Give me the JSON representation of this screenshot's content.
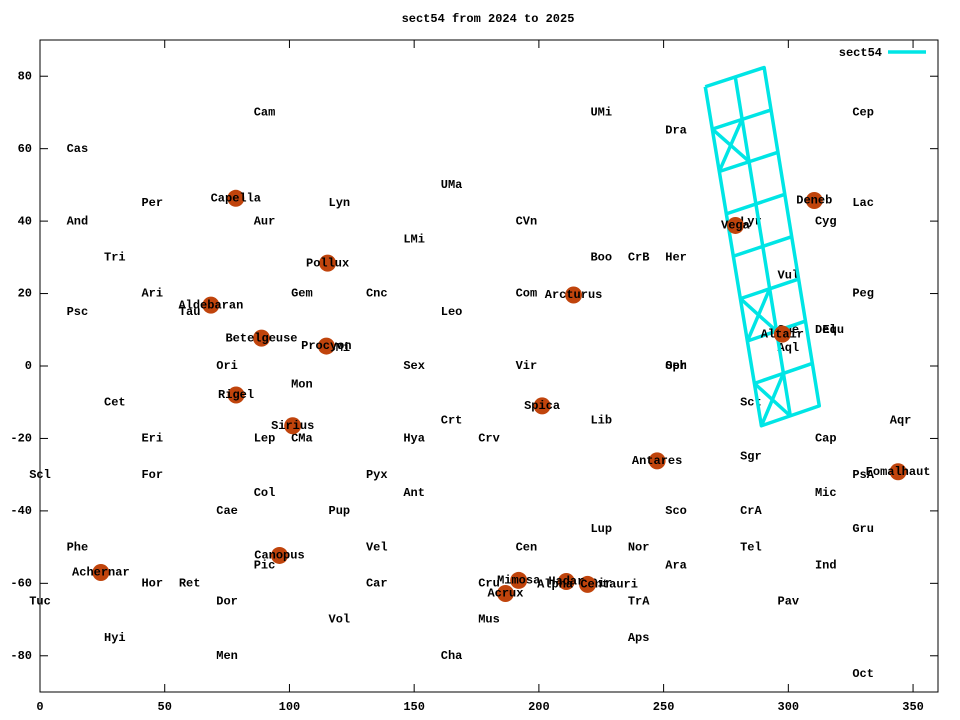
{
  "chart_data": {
    "type": "line",
    "title": "sect54 from 2024 to 2025",
    "xlim": [
      0,
      360
    ],
    "ylim": [
      -90,
      90
    ],
    "xticks": [
      0,
      50,
      100,
      150,
      200,
      250,
      300,
      350
    ],
    "yticks": [
      -80,
      -60,
      -40,
      -20,
      0,
      20,
      40,
      60,
      80
    ],
    "legend": "top-right",
    "series": [
      {
        "name": "sect54",
        "color": "#00e5e5",
        "x": [
          266.7,
          290.3,
          312.4,
          289.2,
          266.7,
          null,
          278.7,
          300.8,
          null,
          269.5,
          293.1,
          null,
          272.3,
          295.8,
          null,
          275.1,
          298.6,
          null,
          277.9,
          301.4,
          null,
          280.8,
          304.1,
          null,
          283.6,
          306.9,
          null,
          286.4,
          309.6,
          null,
          269.5,
          284.2,
          null,
          281.5,
          272.3,
          null,
          280.8,
          295.3,
          null,
          292.5,
          283.6,
          null,
          286.4,
          300.8,
          null,
          298.0,
          289.2
        ],
        "y": [
          77.1,
          82.4,
          -11.0,
          -16.5,
          77.1,
          null,
          79.9,
          -13.8,
          null,
          65.4,
          70.7,
          null,
          53.7,
          59.0,
          null,
          42.0,
          47.4,
          null,
          30.3,
          35.7,
          null,
          18.6,
          24.0,
          null,
          6.9,
          12.4,
          null,
          -4.8,
          0.7,
          null,
          65.4,
          56.5,
          null,
          68.2,
          53.7,
          null,
          18.6,
          9.6,
          null,
          21.3,
          6.9,
          null,
          -4.8,
          -13.8,
          null,
          -2.1,
          -16.5
        ]
      }
    ],
    "stars": {
      "color": "#c0440c",
      "labels": [
        "Capella",
        "Pollux",
        "Aldebaran",
        "Betelgeuse",
        "Procyon",
        "Rigel",
        "Sirius",
        "Canopus",
        "Achernar",
        "Arcturus",
        "Spica",
        "Antares",
        "Mimosa",
        "Acrux",
        "Hadar",
        "Alpha Centauri",
        "Vega",
        "Deneb",
        "Altair",
        "Fomalhaut"
      ],
      "x": [
        78.5,
        115.3,
        68.5,
        88.8,
        114.8,
        78.6,
        101.3,
        96.0,
        24.4,
        213.9,
        201.3,
        247.4,
        191.9,
        186.6,
        211.0,
        219.5,
        278.8,
        310.4,
        297.6,
        344.0
      ],
      "y": [
        46.3,
        28.4,
        16.8,
        7.7,
        5.5,
        -8.0,
        -16.5,
        -52.3,
        -57.0,
        19.6,
        -11.0,
        -26.2,
        -59.2,
        -62.8,
        -59.5,
        -60.3,
        38.8,
        45.7,
        8.8,
        -29.2
      ]
    },
    "annotations": [
      {
        "text": "Cam",
        "x": 90,
        "y": 70
      },
      {
        "text": "Cas",
        "x": 15,
        "y": 60
      },
      {
        "text": "UMi",
        "x": 225,
        "y": 70
      },
      {
        "text": "Dra",
        "x": 255,
        "y": 65
      },
      {
        "text": "Cep",
        "x": 330,
        "y": 70
      },
      {
        "text": "UMa",
        "x": 165,
        "y": 50
      },
      {
        "text": "Per",
        "x": 45,
        "y": 45
      },
      {
        "text": "Aur",
        "x": 90,
        "y": 40
      },
      {
        "text": "And",
        "x": 15,
        "y": 40
      },
      {
        "text": "Lyn",
        "x": 120,
        "y": 45
      },
      {
        "text": "LMi",
        "x": 150,
        "y": 35
      },
      {
        "text": "CVn",
        "x": 195,
        "y": 40
      },
      {
        "text": "Cyg",
        "x": 315,
        "y": 40
      },
      {
        "text": "Lac",
        "x": 330,
        "y": 45
      },
      {
        "text": "Lyr",
        "x": 285,
        "y": 40
      },
      {
        "text": "Tri",
        "x": 30,
        "y": 30
      },
      {
        "text": "Boo",
        "x": 225,
        "y": 30
      },
      {
        "text": "CrB",
        "x": 240,
        "y": 30
      },
      {
        "text": "Her",
        "x": 255,
        "y": 30
      },
      {
        "text": "Vul",
        "x": 300,
        "y": 25
      },
      {
        "text": "Ari",
        "x": 45,
        "y": 20
      },
      {
        "text": "Gem",
        "x": 105,
        "y": 20
      },
      {
        "text": "Cnc",
        "x": 135,
        "y": 20
      },
      {
        "text": "Com",
        "x": 195,
        "y": 20
      },
      {
        "text": "Peg",
        "x": 330,
        "y": 20
      },
      {
        "text": "Psc",
        "x": 15,
        "y": 15
      },
      {
        "text": "Tau",
        "x": 60,
        "y": 15
      },
      {
        "text": "Leo",
        "x": 165,
        "y": 15
      },
      {
        "text": "Sge",
        "x": 300,
        "y": 10
      },
      {
        "text": "Del",
        "x": 315,
        "y": 10
      },
      {
        "text": "Equ",
        "x": 318,
        "y": 10
      },
      {
        "text": "Aql",
        "x": 300,
        "y": 5
      },
      {
        "text": "CMi",
        "x": 120,
        "y": 5
      },
      {
        "text": "Mon",
        "x": 105,
        "y": -5
      },
      {
        "text": "Ori",
        "x": 75,
        "y": 0
      },
      {
        "text": "Sex",
        "x": 150,
        "y": 0
      },
      {
        "text": "Vir",
        "x": 195,
        "y": 0
      },
      {
        "text": "Oph",
        "x": 255,
        "y": 0
      },
      {
        "text": "Ser",
        "x": 255,
        "y": 0
      },
      {
        "text": "Cet",
        "x": 30,
        "y": -10
      },
      {
        "text": "Sct",
        "x": 285,
        "y": -10
      },
      {
        "text": "Crt",
        "x": 165,
        "y": -15
      },
      {
        "text": "Lib",
        "x": 225,
        "y": -15
      },
      {
        "text": "Aqr",
        "x": 345,
        "y": -15
      },
      {
        "text": "Eri",
        "x": 45,
        "y": -20
      },
      {
        "text": "Lep",
        "x": 90,
        "y": -20
      },
      {
        "text": "CMa",
        "x": 105,
        "y": -20
      },
      {
        "text": "Hya",
        "x": 150,
        "y": -20
      },
      {
        "text": "Crv",
        "x": 180,
        "y": -20
      },
      {
        "text": "Cap",
        "x": 315,
        "y": -20
      },
      {
        "text": "Sgr",
        "x": 285,
        "y": -25
      },
      {
        "text": "Scl",
        "x": 0,
        "y": -30
      },
      {
        "text": "For",
        "x": 45,
        "y": -30
      },
      {
        "text": "Pyx",
        "x": 135,
        "y": -30
      },
      {
        "text": "PsA",
        "x": 330,
        "y": -30
      },
      {
        "text": "Col",
        "x": 90,
        "y": -35
      },
      {
        "text": "Ant",
        "x": 150,
        "y": -35
      },
      {
        "text": "Mic",
        "x": 315,
        "y": -35
      },
      {
        "text": "Cae",
        "x": 75,
        "y": -40
      },
      {
        "text": "Pup",
        "x": 120,
        "y": -40
      },
      {
        "text": "Sco",
        "x": 255,
        "y": -40
      },
      {
        "text": "CrA",
        "x": 285,
        "y": -40
      },
      {
        "text": "Lup",
        "x": 225,
        "y": -45
      },
      {
        "text": "Gru",
        "x": 330,
        "y": -45
      },
      {
        "text": "Phe",
        "x": 15,
        "y": -50
      },
      {
        "text": "Vel",
        "x": 135,
        "y": -50
      },
      {
        "text": "Cen",
        "x": 195,
        "y": -50
      },
      {
        "text": "Nor",
        "x": 240,
        "y": -50
      },
      {
        "text": "Tel",
        "x": 285,
        "y": -50
      },
      {
        "text": "Pic",
        "x": 90,
        "y": -55
      },
      {
        "text": "Ara",
        "x": 255,
        "y": -55
      },
      {
        "text": "Ind",
        "x": 315,
        "y": -55
      },
      {
        "text": "Hor",
        "x": 45,
        "y": -60
      },
      {
        "text": "Ret",
        "x": 60,
        "y": -60
      },
      {
        "text": "Car",
        "x": 135,
        "y": -60
      },
      {
        "text": "Cru",
        "x": 180,
        "y": -60
      },
      {
        "text": "Cir",
        "x": 225,
        "y": -60
      },
      {
        "text": "Tuc",
        "x": 0,
        "y": -65
      },
      {
        "text": "Dor",
        "x": 75,
        "y": -65
      },
      {
        "text": "TrA",
        "x": 240,
        "y": -65
      },
      {
        "text": "Pav",
        "x": 300,
        "y": -65
      },
      {
        "text": "Vol",
        "x": 120,
        "y": -70
      },
      {
        "text": "Mus",
        "x": 180,
        "y": -70
      },
      {
        "text": "Hyi",
        "x": 30,
        "y": -75
      },
      {
        "text": "Aps",
        "x": 240,
        "y": -75
      },
      {
        "text": "Men",
        "x": 75,
        "y": -80
      },
      {
        "text": "Cha",
        "x": 165,
        "y": -80
      },
      {
        "text": "Oct",
        "x": 330,
        "y": -85
      }
    ]
  }
}
